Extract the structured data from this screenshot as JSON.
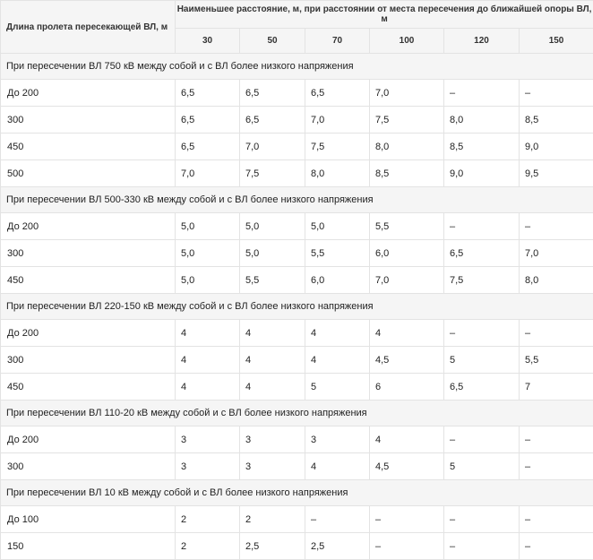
{
  "table": {
    "col_header": "Длина пролета пересекающей ВЛ, м",
    "span_header": "Наименьшее расстояние, м, при расстоянии от места пересечения до ближайшей опоры ВЛ, м",
    "distances": [
      "30",
      "50",
      "70",
      "100",
      "120",
      "150"
    ],
    "groups": [
      {
        "title": "При пересечении ВЛ 750 кВ между собой и с ВЛ более низкого напряжения",
        "rows": [
          {
            "span": "До 200",
            "values": [
              "6,5",
              "6,5",
              "6,5",
              "7,0",
              "–",
              "–"
            ]
          },
          {
            "span": "300",
            "values": [
              "6,5",
              "6,5",
              "7,0",
              "7,5",
              "8,0",
              "8,5"
            ]
          },
          {
            "span": "450",
            "values": [
              "6,5",
              "7,0",
              "7,5",
              "8,0",
              "8,5",
              "9,0"
            ]
          },
          {
            "span": "500",
            "values": [
              "7,0",
              "7,5",
              "8,0",
              "8,5",
              "9,0",
              "9,5"
            ]
          }
        ]
      },
      {
        "title": "При пересечении ВЛ 500-330 кВ между собой и с ВЛ более низкого напряжения",
        "rows": [
          {
            "span": "До 200",
            "values": [
              "5,0",
              "5,0",
              "5,0",
              "5,5",
              "–",
              "–"
            ]
          },
          {
            "span": "300",
            "values": [
              "5,0",
              "5,0",
              "5,5",
              "6,0",
              "6,5",
              "7,0"
            ]
          },
          {
            "span": "450",
            "values": [
              "5,0",
              "5,5",
              "6,0",
              "7,0",
              "7,5",
              "8,0"
            ]
          }
        ]
      },
      {
        "title": "При пересечении ВЛ 220-150 кВ между собой и с ВЛ более низкого напряжения",
        "rows": [
          {
            "span": "До 200",
            "values": [
              "4",
              "4",
              "4",
              "4",
              "–",
              "–"
            ]
          },
          {
            "span": "300",
            "values": [
              "4",
              "4",
              "4",
              "4,5",
              "5",
              "5,5"
            ]
          },
          {
            "span": "450",
            "values": [
              "4",
              "4",
              "5",
              "6",
              "6,5",
              "7"
            ]
          }
        ]
      },
      {
        "title": "При пересечении ВЛ 110-20 кВ между собой и с ВЛ более низкого напряжения",
        "rows": [
          {
            "span": "До 200",
            "values": [
              "3",
              "3",
              "3",
              "4",
              "–",
              "–"
            ]
          },
          {
            "span": "300",
            "values": [
              "3",
              "3",
              "4",
              "4,5",
              "5",
              "–"
            ]
          }
        ]
      },
      {
        "title": "При пересечении ВЛ 10 кВ между собой и с ВЛ более низкого напряжения",
        "rows": [
          {
            "span": "До 100",
            "values": [
              "2",
              "2",
              "–",
              "–",
              "–",
              "–"
            ]
          },
          {
            "span": "150",
            "values": [
              "2",
              "2,5",
              "2,5",
              "–",
              "–",
              "–"
            ]
          }
        ]
      }
    ]
  }
}
